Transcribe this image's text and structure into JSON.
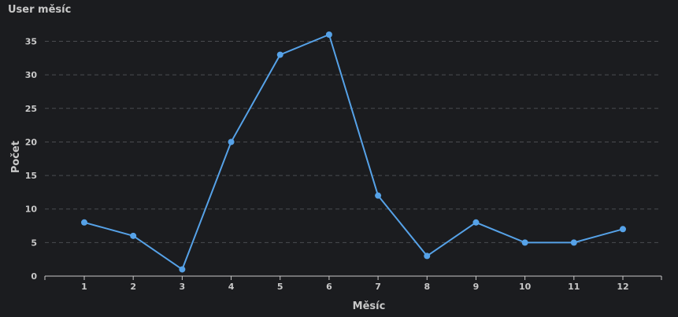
{
  "title": "User měsíc",
  "chart_data": {
    "type": "line",
    "title": "User měsíc",
    "xlabel": "Měsíc",
    "ylabel": "Počet",
    "categories": [
      "1",
      "2",
      "3",
      "4",
      "5",
      "6",
      "7",
      "8",
      "9",
      "10",
      "11",
      "12"
    ],
    "series": [
      {
        "values": [
          8,
          6,
          1,
          20,
          33,
          36,
          12,
          3,
          8,
          5,
          5,
          7
        ]
      }
    ],
    "yticks": [
      0,
      5,
      10,
      15,
      20,
      25,
      30,
      35
    ],
    "ylim": [
      0,
      36
    ],
    "grid": "horizontal dashed",
    "legend": "none",
    "colors": {
      "line": "#56a2e8",
      "grid": "#4a4c50",
      "axis": "#c8c8c8",
      "background": "#1b1c1f"
    }
  }
}
